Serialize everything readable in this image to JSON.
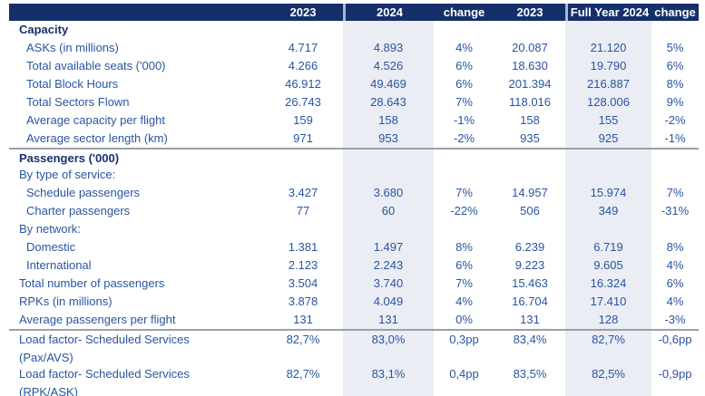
{
  "colors": {
    "header_bg": "#152F6B",
    "header_text": "#FFFFFF",
    "body_text": "#2A55A0",
    "section_text": "#16316D",
    "column_shade": "#EAEDF4",
    "divider": "#9AA0A8"
  },
  "header": {
    "columns": [
      "",
      "2023",
      "2024",
      "change",
      "2023",
      "Full Year 2024",
      "change"
    ]
  },
  "chart_data": {
    "type": "table",
    "column_headers": [
      "",
      "2023",
      "2024",
      "change",
      "2023",
      "Full Year 2024",
      "change"
    ],
    "rows_summary": "Quarterly (2023 vs 2024) and full-year airline capacity, passenger and load-factor statistics"
  },
  "rows": [
    {
      "style": "section",
      "indent": 0,
      "divider": false,
      "label": "Capacity",
      "label2": "",
      "values": [
        "",
        "",
        "",
        "",
        "",
        ""
      ]
    },
    {
      "style": "data",
      "indent": 1,
      "divider": false,
      "label": "ASKs (in millions)",
      "label2": "",
      "values": [
        "4.717",
        "4.893",
        "4%",
        "20.087",
        "21.120",
        "5%"
      ]
    },
    {
      "style": "data",
      "indent": 1,
      "divider": false,
      "label": "Total available seats ('000)",
      "label2": "",
      "values": [
        "4.266",
        "4.526",
        "6%",
        "18.630",
        "19.790",
        "6%"
      ]
    },
    {
      "style": "data",
      "indent": 1,
      "divider": false,
      "label": "Total Block Hours",
      "label2": "",
      "values": [
        "46.912",
        "49.469",
        "6%",
        "201.394",
        "216.887",
        "8%"
      ]
    },
    {
      "style": "data",
      "indent": 1,
      "divider": false,
      "label": "Total Sectors Flown",
      "label2": "",
      "values": [
        "26.743",
        "28.643",
        "7%",
        "118.016",
        "128.006",
        "9%"
      ]
    },
    {
      "style": "data",
      "indent": 1,
      "divider": false,
      "label": "Average capacity per flight",
      "label2": "",
      "values": [
        "159",
        "158",
        "-1%",
        "158",
        "155",
        "-2%"
      ]
    },
    {
      "style": "data",
      "indent": 1,
      "divider": false,
      "label": "Average sector length (km)",
      "label2": "",
      "values": [
        "971",
        "953",
        "-2%",
        "935",
        "925",
        "-1%"
      ]
    },
    {
      "style": "section",
      "indent": 0,
      "divider": true,
      "label": "Passengers ('000)",
      "label2": "",
      "values": [
        "",
        "",
        "",
        "",
        "",
        ""
      ]
    },
    {
      "style": "subhead",
      "indent": 0,
      "divider": false,
      "label": "By type of service:",
      "label2": "",
      "values": [
        "",
        "",
        "",
        "",
        "",
        ""
      ]
    },
    {
      "style": "data",
      "indent": 1,
      "divider": false,
      "label": "Schedule passengers",
      "label2": "",
      "values": [
        "3.427",
        "3.680",
        "7%",
        "14.957",
        "15.974",
        "7%"
      ]
    },
    {
      "style": "data",
      "indent": 1,
      "divider": false,
      "label": "Charter passengers",
      "label2": "",
      "values": [
        "77",
        "60",
        "-22%",
        "506",
        "349",
        "-31%"
      ]
    },
    {
      "style": "subhead",
      "indent": 0,
      "divider": false,
      "label": "By network:",
      "label2": "",
      "values": [
        "",
        "",
        "",
        "",
        "",
        ""
      ]
    },
    {
      "style": "data",
      "indent": 1,
      "divider": false,
      "label": "Domestic",
      "label2": "",
      "values": [
        "1.381",
        "1.497",
        "8%",
        "6.239",
        "6.719",
        "8%"
      ]
    },
    {
      "style": "data",
      "indent": 1,
      "divider": false,
      "label": "International",
      "label2": "",
      "values": [
        "2.123",
        "2.243",
        "6%",
        "9.223",
        "9.605",
        "4%"
      ]
    },
    {
      "style": "data",
      "indent": 0,
      "divider": false,
      "label": "Total number of passengers",
      "label2": "",
      "values": [
        "3.504",
        "3.740",
        "7%",
        "15.463",
        "16.324",
        "6%"
      ]
    },
    {
      "style": "data",
      "indent": 0,
      "divider": false,
      "label": "RPKs (in millions)",
      "label2": "",
      "values": [
        "3.878",
        "4.049",
        "4%",
        "16.704",
        "17.410",
        "4%"
      ]
    },
    {
      "style": "data",
      "indent": 0,
      "divider": false,
      "label": "Average passengers per flight",
      "label2": "",
      "values": [
        "131",
        "131",
        "0%",
        "131",
        "128",
        "-3%"
      ]
    },
    {
      "style": "loadfactor",
      "indent": 0,
      "divider": true,
      "label": "Load factor- Scheduled Services",
      "label2": "(Pax/AVS)",
      "values": [
        "82,7%",
        "83,0%",
        "0,3pp",
        "83,4%",
        "82,7%",
        "-0,6pp"
      ]
    },
    {
      "style": "loadfactor",
      "indent": 0,
      "divider": false,
      "label": "Load factor- Scheduled Services",
      "label2": "(RPK/ASK)",
      "values": [
        "82,7%",
        "83,1%",
        "0,4pp",
        "83,5%",
        "82,5%",
        "-0,9pp"
      ]
    }
  ]
}
